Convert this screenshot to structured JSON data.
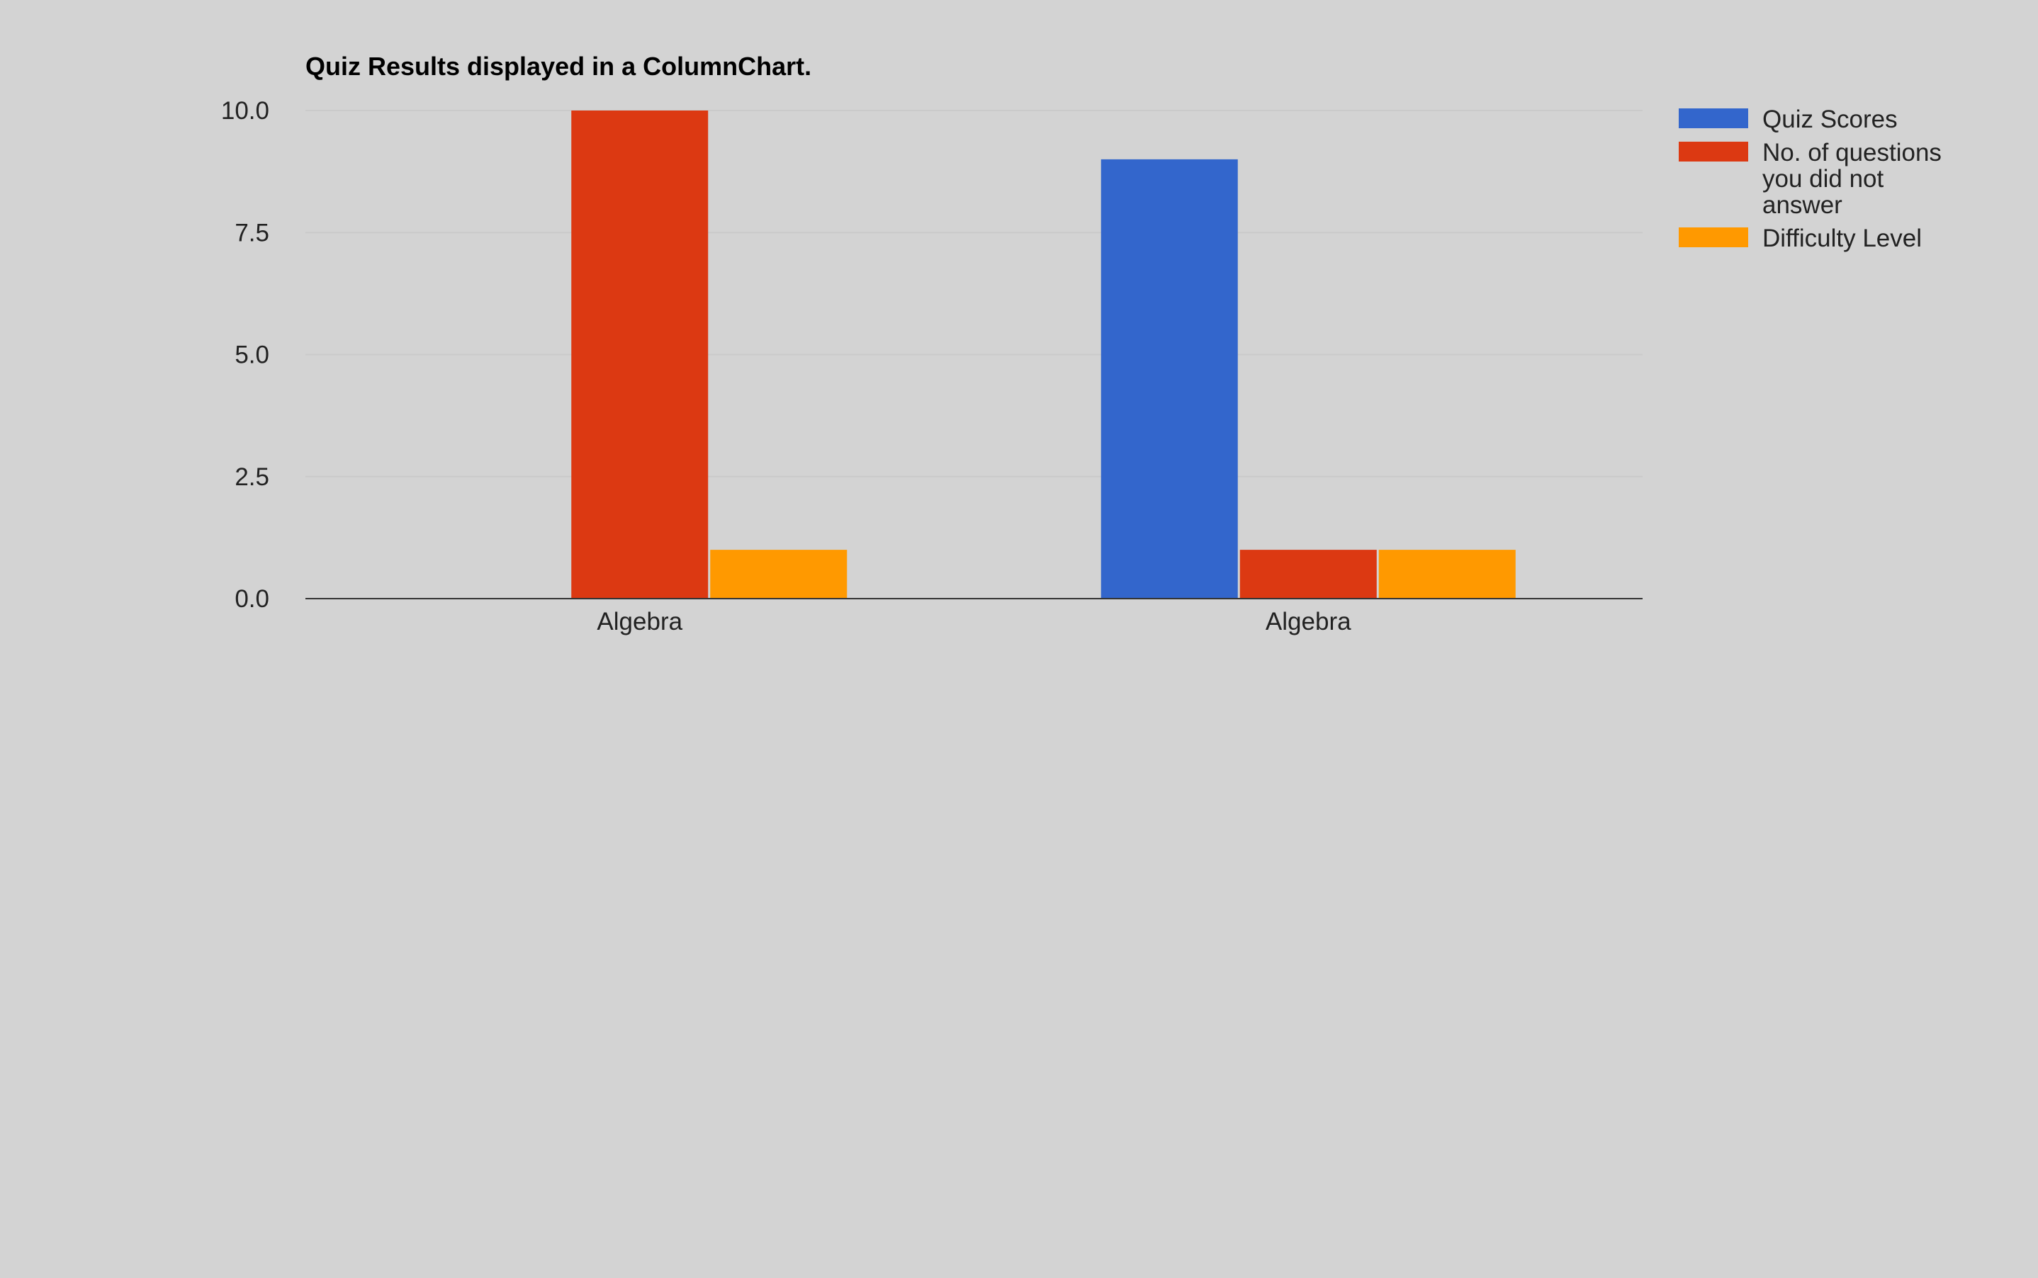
{
  "chart_data": {
    "type": "bar",
    "title": "Quiz Results displayed in a ColumnChart.",
    "xlabel": "",
    "ylabel": "",
    "categories": [
      "Algebra",
      "Algebra"
    ],
    "series": [
      {
        "name": "Quiz Scores",
        "color": "#3366cc",
        "values": [
          0,
          9
        ]
      },
      {
        "name": "No. of questions you did not answer",
        "color": "#dc3912",
        "values": [
          10,
          1
        ]
      },
      {
        "name": "Difficulty Level",
        "color": "#ff9900",
        "values": [
          1,
          1
        ]
      }
    ],
    "ylim": [
      0,
      10
    ],
    "yticks": [
      "0.0",
      "2.5",
      "5.0",
      "7.5",
      "10.0"
    ],
    "ytick_values": [
      0,
      2.5,
      5,
      7.5,
      10
    ],
    "grid": true,
    "legend_position": "right"
  },
  "legend": {
    "items": [
      {
        "lines": [
          "Quiz Scores"
        ]
      },
      {
        "lines": [
          "No. of questions",
          "you did not",
          "answer"
        ]
      },
      {
        "lines": [
          "Difficulty Level"
        ]
      }
    ]
  }
}
